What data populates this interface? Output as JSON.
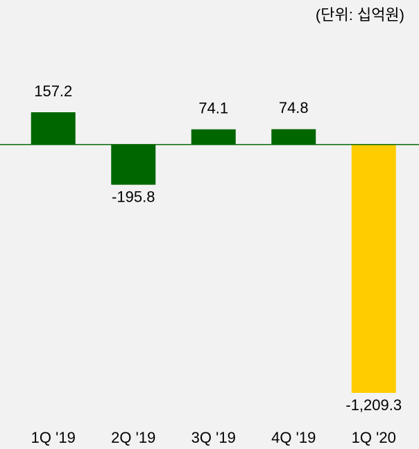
{
  "chart_data": {
    "type": "bar",
    "subtitle": "(단위: 십억원)",
    "categories": [
      "1Q '19",
      "2Q '19",
      "3Q '19",
      "4Q '19",
      "1Q '20"
    ],
    "values": [
      157.2,
      -195.8,
      74.1,
      74.8,
      -1209.3
    ],
    "value_labels": [
      "157.2",
      "-195.8",
      "74.1",
      "74.8",
      "-1,209.3"
    ],
    "colors": [
      "#006600",
      "#006600",
      "#006600",
      "#006600",
      "#ffcc00"
    ],
    "baseline_color": "#006600"
  }
}
